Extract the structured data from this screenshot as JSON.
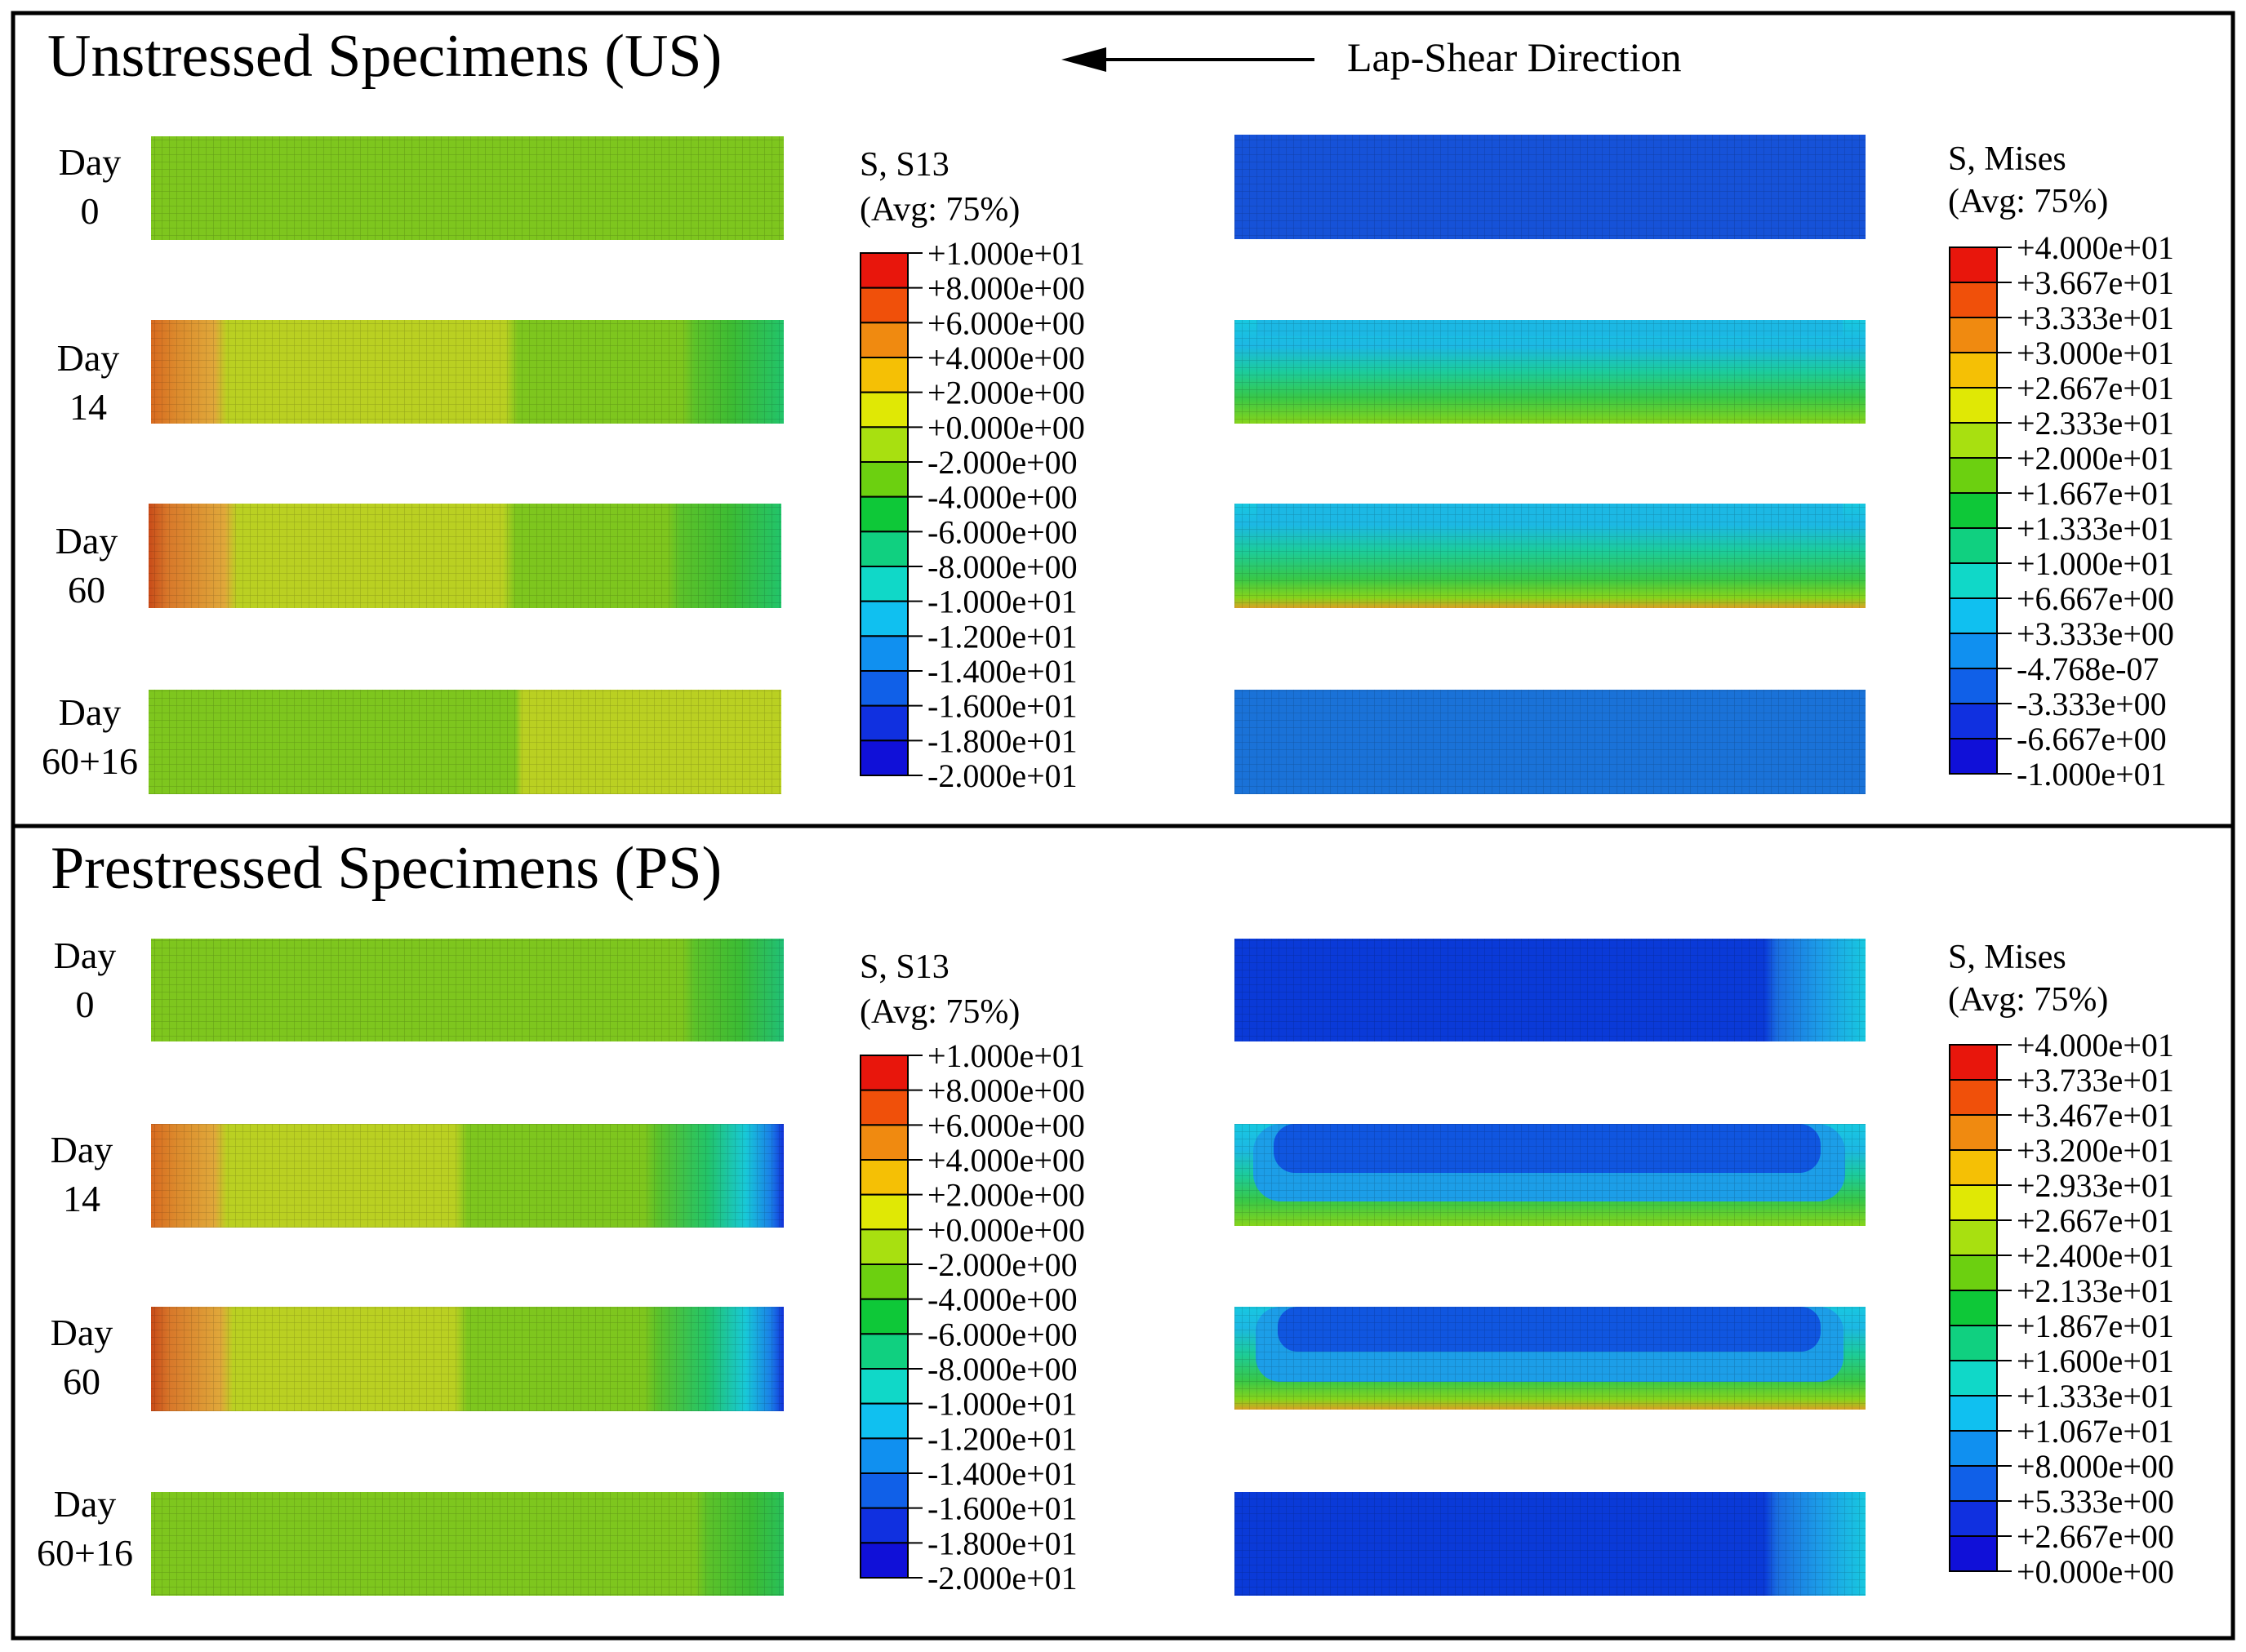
{
  "header": {
    "arrow_label": "Lap-Shear Direction"
  },
  "sections": [
    {
      "id": "us",
      "title": "Unstressed Specimens (US)",
      "rows": [
        {
          "day_line1": "Day",
          "day_line2": "0"
        },
        {
          "day_line1": "Day",
          "day_line2": "14"
        },
        {
          "day_line1": "Day",
          "day_line2": "60"
        },
        {
          "day_line1": "Day",
          "day_line2": "60+16"
        }
      ],
      "s13_legend": {
        "title_line1": "S, S13",
        "title_line2": "(Avg: 75%)",
        "ticks": [
          "+1.000e+01",
          "+8.000e+00",
          "+6.000e+00",
          "+4.000e+00",
          "+2.000e+00",
          "+0.000e+00",
          "-2.000e+00",
          "-4.000e+00",
          "-6.000e+00",
          "-8.000e+00",
          "-1.000e+01",
          "-1.200e+01",
          "-1.400e+01",
          "-1.600e+01",
          "-1.800e+01",
          "-2.000e+01"
        ]
      },
      "mises_legend": {
        "title_line1": "S, Mises",
        "title_line2": "(Avg: 75%)",
        "ticks": [
          "+4.000e+01",
          "+3.667e+01",
          "+3.333e+01",
          "+3.000e+01",
          "+2.667e+01",
          "+2.333e+01",
          "+2.000e+01",
          "+1.667e+01",
          "+1.333e+01",
          "+1.000e+01",
          "+6.667e+00",
          "+3.333e+00",
          "-4.768e-07",
          "-3.333e+00",
          "-6.667e+00",
          "-1.000e+01"
        ]
      }
    },
    {
      "id": "ps",
      "title": "Prestressed Specimens (PS)",
      "rows": [
        {
          "day_line1": "Day",
          "day_line2": "0"
        },
        {
          "day_line1": "Day",
          "day_line2": "14"
        },
        {
          "day_line1": "Day",
          "day_line2": "60"
        },
        {
          "day_line1": "Day",
          "day_line2": "60+16"
        }
      ],
      "s13_legend": {
        "title_line1": "S, S13",
        "title_line2": "(Avg: 75%)",
        "ticks": [
          "+1.000e+01",
          "+8.000e+00",
          "+6.000e+00",
          "+4.000e+00",
          "+2.000e+00",
          "+0.000e+00",
          "-2.000e+00",
          "-4.000e+00",
          "-6.000e+00",
          "-8.000e+00",
          "-1.000e+01",
          "-1.200e+01",
          "-1.400e+01",
          "-1.600e+01",
          "-1.800e+01",
          "-2.000e+01"
        ]
      },
      "mises_legend": {
        "title_line1": "S, Mises",
        "title_line2": "(Avg: 75%)",
        "ticks": [
          "+4.000e+01",
          "+3.733e+01",
          "+3.467e+01",
          "+3.200e+01",
          "+2.933e+01",
          "+2.667e+01",
          "+2.400e+01",
          "+2.133e+01",
          "+1.867e+01",
          "+1.600e+01",
          "+1.333e+01",
          "+1.067e+01",
          "+8.000e+00",
          "+5.333e+00",
          "+2.667e+00",
          "+0.000e+00"
        ]
      }
    }
  ],
  "colormap": [
    "#e8160c",
    "#f0500a",
    "#f08a10",
    "#f5c005",
    "#e0e805",
    "#a8e010",
    "#6cd010",
    "#28c80c",
    "#0ec838",
    "#10d080",
    "#10d8c8",
    "#10c0f0",
    "#1090f0",
    "#1060e8",
    "#1030e0",
    "#1010d8"
  ],
  "contour_colors": {
    "s13_neutral": "#82c91e",
    "s13_yellowgreen": "#b8d81a",
    "s13_orange": "#e0a828",
    "s13_red": "#d85a1a",
    "s13_green": "#5cc22a",
    "s13_darkgreen": "#38b832",
    "s13_teal": "#1ec88a",
    "s13_cyan": "#18d0e8",
    "s13_blue": "#1050e8",
    "mises_blue_dark": "#0a3ad8",
    "mises_blue": "#1a6ee0",
    "mises_lightblue": "#1c9ee8",
    "mises_cyan": "#18c8e0",
    "mises_teal": "#1ccc9c",
    "mises_green": "#38c848",
    "mises_lime": "#86d41c",
    "mises_orange": "#e89820"
  }
}
